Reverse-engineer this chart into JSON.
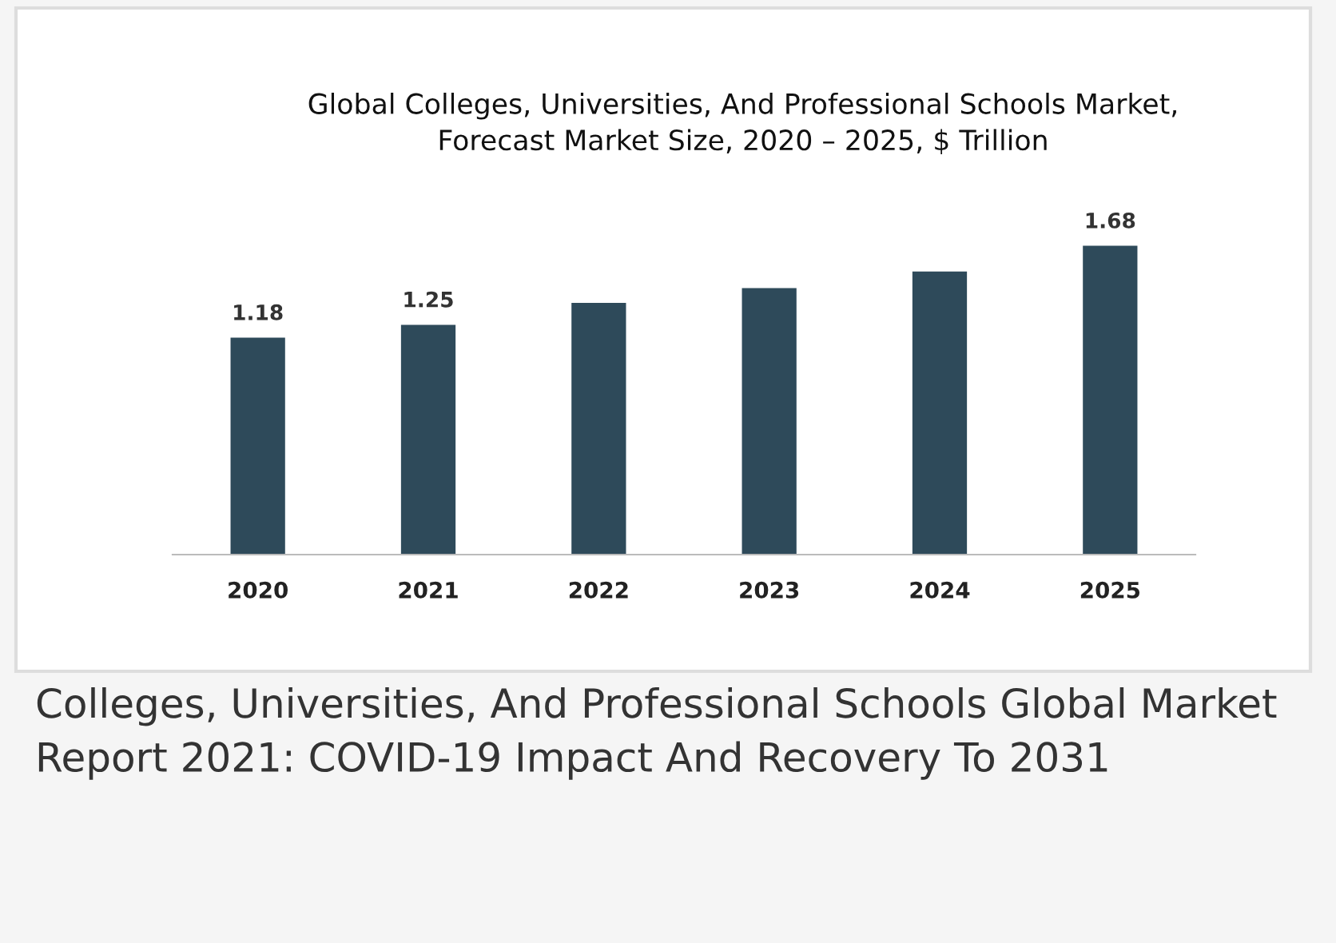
{
  "chart_data": {
    "type": "bar",
    "title": "Global Colleges, Universities, And Professional Schools Market,\nForecast Market Size, 2020 – 2025, $ Trillion",
    "categories": [
      "2020",
      "2021",
      "2022",
      "2023",
      "2024",
      "2025"
    ],
    "values": [
      1.18,
      1.25,
      1.37,
      1.45,
      1.54,
      1.68
    ],
    "value_labels": [
      "1.18",
      "1.25",
      null,
      null,
      null,
      "1.68"
    ],
    "color": "#2e4a5a",
    "grid": false,
    "legend": false,
    "tick_labels": "x",
    "annotations": [
      "Colleges, Universities, And Professional Schools Global Market Report 2021: COVID-19 Impact And Recovery To 2031"
    ]
  }
}
